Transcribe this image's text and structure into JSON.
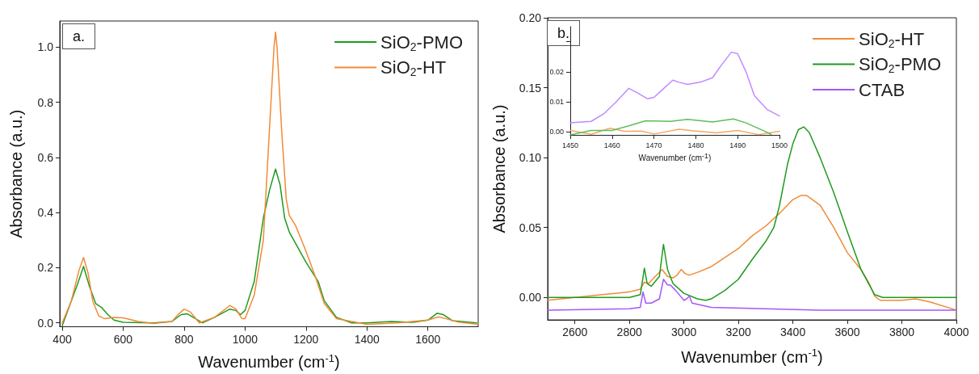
{
  "chart_data": [
    {
      "type": "line",
      "xlabel": "Wavenumber (cm$^{-1}$)",
      "ylabel": "Absorbance (a.u.)",
      "annotations": [
        "a."
      ],
      "legend": "top right",
      "grid": false,
      "marker": "none",
      "xlim": [
        392,
        1765
      ],
      "xticks": [
        400,
        600,
        800,
        1000,
        1200,
        1400,
        1600
      ],
      "ylim": [
        -0.014,
        1.095
      ],
      "yticks": [
        {
          "value": 0,
          "label": "0.0"
        },
        0.2,
        0.4,
        0.6,
        0.8,
        {
          "value": 1,
          "label": "1.0"
        }
      ],
      "series": [
        {
          "name": "SiO$_{2}$-PMO",
          "color": "#1f9a1f",
          "x": [
            400,
            420,
            450,
            470,
            490,
            510,
            530,
            550,
            570,
            600,
            700,
            760,
            790,
            810,
            830,
            860,
            900,
            950,
            970,
            985,
            1000,
            1030,
            1060,
            1080,
            1100,
            1115,
            1130,
            1145,
            1160,
            1200,
            1240,
            1260,
            1300,
            1350,
            1400,
            1480,
            1550,
            1600,
            1630,
            1650,
            1680,
            1760
          ],
          "values": [
            -0.01,
            0.05,
            0.14,
            0.205,
            0.13,
            0.07,
            0.055,
            0.03,
            0.01,
            0.002,
            0,
            0.005,
            0.03,
            0.033,
            0.02,
            0,
            0.02,
            0.05,
            0.045,
            0.03,
            0.045,
            0.15,
            0.38,
            0.48,
            0.558,
            0.5,
            0.38,
            0.33,
            0.3,
            0.22,
            0.15,
            0.08,
            0.02,
            0,
            0,
            0.005,
            0.002,
            0.01,
            0.035,
            0.03,
            0.008,
            0
          ]
        },
        {
          "name": "SiO$_{2}$-HT",
          "color": "#f28a36",
          "x": [
            400,
            430,
            455,
            470,
            485,
            500,
            520,
            540,
            570,
            600,
            650,
            700,
            760,
            780,
            800,
            820,
            850,
            900,
            950,
            970,
            990,
            1000,
            1030,
            1060,
            1080,
            1095,
            1100,
            1105,
            1120,
            1135,
            1145,
            1165,
            1200,
            1230,
            1260,
            1300,
            1400,
            1500,
            1600,
            1635,
            1660,
            1700,
            1765
          ],
          "values": [
            0,
            0.08,
            0.19,
            0.237,
            0.18,
            0.08,
            0.025,
            0.015,
            0.02,
            0.018,
            0.005,
            -0.002,
            0.005,
            0.03,
            0.05,
            0.04,
            0,
            0.02,
            0.063,
            0.05,
            0.015,
            0.015,
            0.1,
            0.3,
            0.7,
            1.0,
            1.055,
            1.0,
            0.7,
            0.45,
            0.39,
            0.355,
            0.26,
            0.17,
            0.07,
            0.015,
            -0.005,
            0,
            0.01,
            0.022,
            0.015,
            0.003,
            -0.005
          ]
        }
      ]
    },
    {
      "type": "line",
      "xlabel": "Wavenumber (cm$^{-1}$)",
      "ylabel": "Absorbance (a.u.)",
      "annotations": [
        "b."
      ],
      "legend": "top right",
      "grid": false,
      "marker": "none",
      "xlim": [
        2500,
        4000
      ],
      "xticks": [
        2600,
        2800,
        3000,
        3200,
        3400,
        3600,
        3800,
        4000
      ],
      "ylim": [
        -0.016,
        0.2
      ],
      "yticks": [
        {
          "value": 0,
          "label": "0.00"
        },
        0.05,
        {
          "value": 0.1,
          "label": "0.10"
        },
        0.15,
        {
          "value": 0.2,
          "label": "0.20"
        }
      ],
      "series": [
        {
          "name": "SiO$_{2}$-HT",
          "color": "#f28a36",
          "x": [
            2500,
            2600,
            2700,
            2800,
            2840,
            2855,
            2870,
            2900,
            2920,
            2940,
            2960,
            2975,
            2990,
            3005,
            3020,
            3050,
            3100,
            3200,
            3250,
            3300,
            3350,
            3400,
            3430,
            3450,
            3500,
            3550,
            3600,
            3650,
            3680,
            3700,
            3720,
            3800,
            3850,
            3900,
            4000
          ],
          "values": [
            -0.002,
            0,
            0.002,
            0.004,
            0.006,
            0.011,
            0.01,
            0.016,
            0.02,
            0.015,
            0.014,
            0.016,
            0.02,
            0.017,
            0.016,
            0.018,
            0.022,
            0.035,
            0.044,
            0.051,
            0.06,
            0.07,
            0.073,
            0.073,
            0.066,
            0.05,
            0.032,
            0.02,
            0.01,
            0.001,
            -0.002,
            -0.002,
            -0.001,
            -0.003,
            -0.009
          ]
        },
        {
          "name": "SiO$_{2}$-PMO",
          "color": "#1f9a1f",
          "x": [
            2500,
            2800,
            2840,
            2855,
            2865,
            2880,
            2910,
            2925,
            2940,
            2960,
            3000,
            3050,
            3080,
            3100,
            3150,
            3200,
            3250,
            3300,
            3330,
            3350,
            3380,
            3400,
            3420,
            3440,
            3460,
            3500,
            3550,
            3600,
            3650,
            3700,
            3730,
            4000
          ],
          "values": [
            0,
            0,
            0.002,
            0.021,
            0.01,
            0.008,
            0.015,
            0.038,
            0.02,
            0.01,
            0.003,
            -0.001,
            -0.002,
            -0.001,
            0.005,
            0.013,
            0.027,
            0.04,
            0.05,
            0.065,
            0.095,
            0.11,
            0.12,
            0.122,
            0.118,
            0.1,
            0.075,
            0.047,
            0.02,
            0.002,
            0,
            0
          ]
        },
        {
          "name": "CTAB",
          "color": "#a855f7",
          "x": [
            2500,
            2800,
            2840,
            2850,
            2860,
            2880,
            2910,
            2925,
            2940,
            2950,
            2970,
            3000,
            3010,
            3020,
            3030,
            3100,
            3300,
            3500,
            4000
          ],
          "values": [
            -0.009,
            -0.008,
            -0.007,
            0.004,
            -0.004,
            -0.004,
            -0.001,
            0.013,
            0.009,
            0.009,
            0.005,
            -0.002,
            -0.001,
            0.001,
            -0.004,
            -0.007,
            -0.008,
            -0.009,
            -0.009
          ]
        }
      ]
    },
    {
      "type": "line",
      "xlabel": "Wavenumber (cm$^{-1}$)",
      "legend": false,
      "grid": false,
      "marker": "none",
      "xlim": [
        1450,
        1500
      ],
      "xticks": [
        1450,
        1460,
        1470,
        1480,
        1490,
        1500
      ],
      "ylim": [
        -0.001,
        0.035
      ],
      "yticks": [
        {
          "value": 0,
          "label": "0.00"
        },
        0.01,
        0.02,
        {
          "value": 0.03,
          "label": null
        }
      ],
      "series": [
        {
          "color": "#f5a868",
          "x": [
            1450,
            1455,
            1459.5,
            1463,
            1467,
            1470,
            1476,
            1480,
            1485,
            1490,
            1495,
            1500
          ],
          "values": [
            0.0005,
            -0.0008,
            0.0012,
            0.0002,
            0.0003,
            -0.0007,
            0.0009,
            0.0003,
            -0.0003,
            0.0005,
            -0.0009,
            0.0002
          ]
        },
        {
          "color": "#5cbf5c",
          "x": [
            1450,
            1455,
            1460,
            1464,
            1468,
            1474,
            1478,
            1484,
            1489,
            1492,
            1496,
            1498
          ],
          "values": [
            -0.001,
            0.0005,
            0.0005,
            0.002,
            0.0037,
            0.0035,
            0.0042,
            0.0033,
            0.0043,
            0.003,
            0.0005,
            -0.0008
          ]
        },
        {
          "color": "#c08aff",
          "x": [
            1450,
            1455,
            1458,
            1461,
            1464,
            1466,
            1468.5,
            1470,
            1472,
            1474.5,
            1476,
            1478,
            1481,
            1484,
            1486,
            1488.5,
            1490,
            1492,
            1494,
            1497,
            1500
          ],
          "values": [
            0.003,
            0.0035,
            0.006,
            0.01,
            0.0145,
            0.013,
            0.011,
            0.0115,
            0.014,
            0.0172,
            0.0165,
            0.0158,
            0.0165,
            0.018,
            0.022,
            0.0265,
            0.026,
            0.02,
            0.012,
            0.0075,
            0.0053
          ]
        }
      ]
    }
  ]
}
